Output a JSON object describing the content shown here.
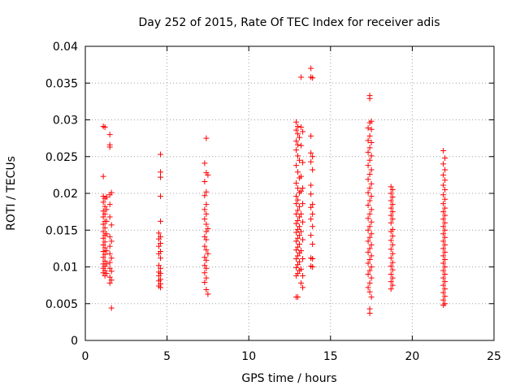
{
  "chart_data": {
    "type": "scatter",
    "title": "Day 252 of 2015, Rate Of TEC Index for receiver adis",
    "xlabel": "GPS time / hours",
    "ylabel": "ROTI / TECUs",
    "xlim": [
      0,
      25
    ],
    "ylim": [
      0,
      0.04
    ],
    "x_ticks": [
      0,
      5,
      10,
      15,
      20,
      25
    ],
    "y_ticks": [
      0,
      0.005,
      0.01,
      0.015,
      0.02,
      0.025,
      0.03,
      0.035,
      0.04
    ],
    "x_tick_labels": [
      "0",
      "5",
      "10",
      "15",
      "20",
      "25"
    ],
    "y_tick_labels": [
      "0",
      "0.005",
      "0.01",
      "0.015",
      "0.02",
      "0.025",
      "0.03",
      "0.035",
      "0.04"
    ],
    "grid": true,
    "marker": "+",
    "color": "#ff0000",
    "series": [
      {
        "points": [
          [
            1.1,
            0.0291
          ],
          [
            1.2,
            0.029
          ],
          [
            1.1,
            0.0223
          ],
          [
            1.1,
            0.0196
          ],
          [
            1.2,
            0.0193
          ],
          [
            1.1,
            0.0188
          ],
          [
            1.2,
            0.0182
          ],
          [
            1.1,
            0.0176
          ],
          [
            1.2,
            0.0172
          ],
          [
            1.1,
            0.0168
          ],
          [
            1.2,
            0.0162
          ],
          [
            1.1,
            0.0158
          ],
          [
            1.2,
            0.0153
          ],
          [
            1.1,
            0.0148
          ],
          [
            1.2,
            0.0143
          ],
          [
            1.1,
            0.0139
          ],
          [
            1.2,
            0.0134
          ],
          [
            1.1,
            0.013
          ],
          [
            1.2,
            0.0126
          ],
          [
            1.1,
            0.0121
          ],
          [
            1.2,
            0.0117
          ],
          [
            1.1,
            0.0113
          ],
          [
            1.2,
            0.0108
          ],
          [
            1.1,
            0.0104
          ],
          [
            1.2,
            0.0101
          ],
          [
            1.1,
            0.0098
          ],
          [
            1.2,
            0.0095
          ],
          [
            1.1,
            0.0092
          ],
          [
            1.2,
            0.0088
          ],
          [
            1.3,
            0.0195
          ],
          [
            1.3,
            0.0178
          ],
          [
            1.3,
            0.0162
          ],
          [
            1.3,
            0.0145
          ],
          [
            1.3,
            0.0122
          ],
          [
            1.3,
            0.0104
          ],
          [
            1.3,
            0.0091
          ],
          [
            1.5,
            0.028
          ],
          [
            1.5,
            0.0266
          ],
          [
            1.5,
            0.0263
          ],
          [
            1.6,
            0.0201
          ],
          [
            1.5,
            0.0198
          ],
          [
            1.5,
            0.0185
          ],
          [
            1.5,
            0.0168
          ],
          [
            1.6,
            0.0157
          ],
          [
            1.5,
            0.0141
          ],
          [
            1.6,
            0.0135
          ],
          [
            1.5,
            0.0128
          ],
          [
            1.5,
            0.0118
          ],
          [
            1.6,
            0.0112
          ],
          [
            1.5,
            0.0106
          ],
          [
            1.5,
            0.0098
          ],
          [
            1.6,
            0.0094
          ],
          [
            1.5,
            0.0086
          ],
          [
            1.6,
            0.0082
          ],
          [
            1.5,
            0.0078
          ],
          [
            1.6,
            0.0044
          ]
        ]
      },
      {
        "points": [
          [
            4.6,
            0.0253
          ],
          [
            4.6,
            0.0229
          ],
          [
            4.6,
            0.0222
          ],
          [
            4.6,
            0.0196
          ],
          [
            4.6,
            0.0162
          ],
          [
            4.5,
            0.0146
          ],
          [
            4.6,
            0.0141
          ],
          [
            4.5,
            0.0138
          ],
          [
            4.6,
            0.0132
          ],
          [
            4.5,
            0.0128
          ],
          [
            4.6,
            0.0121
          ],
          [
            4.5,
            0.0118
          ],
          [
            4.6,
            0.0112
          ],
          [
            4.5,
            0.0102
          ],
          [
            4.6,
            0.0098
          ],
          [
            4.5,
            0.0093
          ],
          [
            4.6,
            0.0091
          ],
          [
            4.5,
            0.0088
          ],
          [
            4.6,
            0.0083
          ],
          [
            4.5,
            0.0081
          ],
          [
            4.6,
            0.0077
          ],
          [
            4.5,
            0.0074
          ],
          [
            4.6,
            0.0072
          ]
        ]
      },
      {
        "points": [
          [
            7.4,
            0.0275
          ],
          [
            7.3,
            0.0241
          ],
          [
            7.4,
            0.0228
          ],
          [
            7.5,
            0.0225
          ],
          [
            7.3,
            0.0216
          ],
          [
            7.4,
            0.0202
          ],
          [
            7.3,
            0.0197
          ],
          [
            7.4,
            0.0185
          ],
          [
            7.3,
            0.0178
          ],
          [
            7.4,
            0.0172
          ],
          [
            7.3,
            0.0165
          ],
          [
            7.4,
            0.0158
          ],
          [
            7.5,
            0.0152
          ],
          [
            7.4,
            0.0148
          ],
          [
            7.3,
            0.0141
          ],
          [
            7.4,
            0.0137
          ],
          [
            7.3,
            0.0128
          ],
          [
            7.4,
            0.0123
          ],
          [
            7.5,
            0.0118
          ],
          [
            7.3,
            0.0113
          ],
          [
            7.4,
            0.0109
          ],
          [
            7.3,
            0.0102
          ],
          [
            7.4,
            0.0098
          ],
          [
            7.3,
            0.0092
          ],
          [
            7.4,
            0.0085
          ],
          [
            7.3,
            0.0079
          ],
          [
            7.4,
            0.0069
          ],
          [
            7.5,
            0.0063
          ]
        ]
      },
      {
        "points": [
          [
            12.9,
            0.0297
          ],
          [
            13.0,
            0.0291
          ],
          [
            12.9,
            0.0286
          ],
          [
            13.0,
            0.0281
          ],
          [
            13.1,
            0.0276
          ],
          [
            12.9,
            0.0271
          ],
          [
            13.0,
            0.0266
          ],
          [
            12.9,
            0.0259
          ],
          [
            13.0,
            0.0251
          ],
          [
            13.1,
            0.0245
          ],
          [
            12.9,
            0.0238
          ],
          [
            13.0,
            0.0229
          ],
          [
            13.1,
            0.0221
          ],
          [
            12.9,
            0.0214
          ],
          [
            13.0,
            0.0207
          ],
          [
            13.1,
            0.0201
          ],
          [
            12.9,
            0.0196
          ],
          [
            13.0,
            0.0191
          ],
          [
            12.9,
            0.0186
          ],
          [
            13.1,
            0.0182
          ],
          [
            13.0,
            0.0177
          ],
          [
            12.9,
            0.0172
          ],
          [
            13.1,
            0.0168
          ],
          [
            13.0,
            0.0163
          ],
          [
            12.9,
            0.0159
          ],
          [
            13.1,
            0.0155
          ],
          [
            13.0,
            0.0151
          ],
          [
            12.9,
            0.0147
          ],
          [
            13.1,
            0.0143
          ],
          [
            13.0,
            0.0139
          ],
          [
            12.9,
            0.0135
          ],
          [
            13.1,
            0.0131
          ],
          [
            13.0,
            0.0127
          ],
          [
            12.9,
            0.0123
          ],
          [
            13.1,
            0.0119
          ],
          [
            13.0,
            0.0115
          ],
          [
            12.9,
            0.0111
          ],
          [
            13.1,
            0.0107
          ],
          [
            13.0,
            0.0103
          ],
          [
            12.9,
            0.0099
          ],
          [
            13.1,
            0.0095
          ],
          [
            13.0,
            0.0091
          ],
          [
            12.9,
            0.0088
          ],
          [
            13.0,
            0.0059
          ],
          [
            12.9,
            0.0059
          ],
          [
            13.2,
            0.0358
          ],
          [
            13.2,
            0.029
          ],
          [
            13.3,
            0.0284
          ],
          [
            13.2,
            0.0265
          ],
          [
            13.3,
            0.0242
          ],
          [
            13.2,
            0.0223
          ],
          [
            13.3,
            0.0207
          ],
          [
            13.2,
            0.0203
          ],
          [
            13.3,
            0.0186
          ],
          [
            13.2,
            0.0172
          ],
          [
            13.3,
            0.0161
          ],
          [
            13.2,
            0.0148
          ],
          [
            13.3,
            0.0137
          ],
          [
            13.2,
            0.0122
          ],
          [
            13.3,
            0.0111
          ],
          [
            13.2,
            0.0097
          ],
          [
            13.3,
            0.0088
          ],
          [
            13.2,
            0.0078
          ],
          [
            13.3,
            0.0072
          ],
          [
            13.8,
            0.037
          ],
          [
            13.8,
            0.0358
          ],
          [
            13.9,
            0.0357
          ],
          [
            13.8,
            0.0278
          ],
          [
            13.8,
            0.0255
          ],
          [
            13.9,
            0.025
          ],
          [
            13.8,
            0.0243
          ],
          [
            13.9,
            0.0232
          ],
          [
            13.8,
            0.0211
          ],
          [
            13.8,
            0.0199
          ],
          [
            13.9,
            0.0185
          ],
          [
            13.8,
            0.0181
          ],
          [
            13.9,
            0.0172
          ],
          [
            13.8,
            0.0165
          ],
          [
            13.9,
            0.0155
          ],
          [
            13.8,
            0.0143
          ],
          [
            13.9,
            0.0131
          ],
          [
            13.8,
            0.0112
          ],
          [
            13.9,
            0.0111
          ],
          [
            13.8,
            0.0101
          ],
          [
            13.9,
            0.01
          ]
        ]
      },
      {
        "points": [
          [
            17.4,
            0.0333
          ],
          [
            17.4,
            0.0329
          ],
          [
            17.5,
            0.0298
          ],
          [
            17.4,
            0.0296
          ],
          [
            17.3,
            0.0289
          ],
          [
            17.5,
            0.0287
          ],
          [
            17.4,
            0.0278
          ],
          [
            17.3,
            0.0272
          ],
          [
            17.5,
            0.0269
          ],
          [
            17.4,
            0.0262
          ],
          [
            17.3,
            0.0256
          ],
          [
            17.5,
            0.0251
          ],
          [
            17.4,
            0.0245
          ],
          [
            17.3,
            0.0238
          ],
          [
            17.5,
            0.0232
          ],
          [
            17.4,
            0.0226
          ],
          [
            17.3,
            0.0219
          ],
          [
            17.5,
            0.0213
          ],
          [
            17.4,
            0.0207
          ],
          [
            17.3,
            0.0201
          ],
          [
            17.5,
            0.0196
          ],
          [
            17.4,
            0.019
          ],
          [
            17.3,
            0.0184
          ],
          [
            17.5,
            0.0178
          ],
          [
            17.4,
            0.0172
          ],
          [
            17.3,
            0.0166
          ],
          [
            17.5,
            0.0161
          ],
          [
            17.4,
            0.0155
          ],
          [
            17.3,
            0.015
          ],
          [
            17.5,
            0.0145
          ],
          [
            17.4,
            0.014
          ],
          [
            17.3,
            0.0135
          ],
          [
            17.5,
            0.013
          ],
          [
            17.4,
            0.0125
          ],
          [
            17.3,
            0.012
          ],
          [
            17.5,
            0.0115
          ],
          [
            17.4,
            0.011
          ],
          [
            17.3,
            0.0105
          ],
          [
            17.5,
            0.01
          ],
          [
            17.4,
            0.0095
          ],
          [
            17.3,
            0.009
          ],
          [
            17.5,
            0.0085
          ],
          [
            17.4,
            0.0078
          ],
          [
            17.3,
            0.0072
          ],
          [
            17.4,
            0.0066
          ],
          [
            17.5,
            0.0059
          ],
          [
            17.4,
            0.0043
          ],
          [
            17.4,
            0.0037
          ],
          [
            18.7,
            0.0209
          ],
          [
            18.8,
            0.0205
          ],
          [
            18.7,
            0.02
          ],
          [
            18.8,
            0.0195
          ],
          [
            18.7,
            0.019
          ],
          [
            18.8,
            0.0185
          ],
          [
            18.7,
            0.018
          ],
          [
            18.8,
            0.0175
          ],
          [
            18.7,
            0.017
          ],
          [
            18.8,
            0.0165
          ],
          [
            18.7,
            0.016
          ],
          [
            18.8,
            0.0151
          ],
          [
            18.7,
            0.0148
          ],
          [
            18.8,
            0.0142
          ],
          [
            18.7,
            0.0136
          ],
          [
            18.8,
            0.013
          ],
          [
            18.7,
            0.0124
          ],
          [
            18.8,
            0.0118
          ],
          [
            18.7,
            0.0112
          ],
          [
            18.8,
            0.0106
          ],
          [
            18.7,
            0.0101
          ],
          [
            18.8,
            0.0096
          ],
          [
            18.7,
            0.009
          ],
          [
            18.8,
            0.0085
          ],
          [
            18.7,
            0.008
          ],
          [
            18.8,
            0.0075
          ],
          [
            18.7,
            0.007
          ]
        ]
      },
      {
        "points": [
          [
            21.9,
            0.0258
          ],
          [
            22.0,
            0.0248
          ],
          [
            21.9,
            0.024
          ],
          [
            22.0,
            0.0232
          ],
          [
            21.9,
            0.0225
          ],
          [
            22.0,
            0.0218
          ],
          [
            21.9,
            0.0211
          ],
          [
            22.0,
            0.0205
          ],
          [
            21.9,
            0.0198
          ],
          [
            22.0,
            0.0192
          ],
          [
            21.9,
            0.0186
          ],
          [
            22.0,
            0.018
          ],
          [
            21.9,
            0.0175
          ],
          [
            22.0,
            0.017
          ],
          [
            21.9,
            0.0165
          ],
          [
            22.0,
            0.016
          ],
          [
            21.9,
            0.0155
          ],
          [
            22.0,
            0.015
          ],
          [
            21.9,
            0.0145
          ],
          [
            22.0,
            0.014
          ],
          [
            21.9,
            0.0135
          ],
          [
            22.0,
            0.013
          ],
          [
            21.9,
            0.0125
          ],
          [
            22.0,
            0.012
          ],
          [
            21.9,
            0.0115
          ],
          [
            22.0,
            0.011
          ],
          [
            21.9,
            0.0105
          ],
          [
            22.0,
            0.01
          ],
          [
            21.9,
            0.0095
          ],
          [
            22.0,
            0.009
          ],
          [
            21.9,
            0.0085
          ],
          [
            22.0,
            0.008
          ],
          [
            21.9,
            0.0075
          ],
          [
            22.0,
            0.007
          ],
          [
            21.9,
            0.0065
          ],
          [
            22.0,
            0.006
          ],
          [
            21.9,
            0.0055
          ],
          [
            22.0,
            0.005
          ],
          [
            21.9,
            0.0048
          ]
        ]
      }
    ]
  }
}
